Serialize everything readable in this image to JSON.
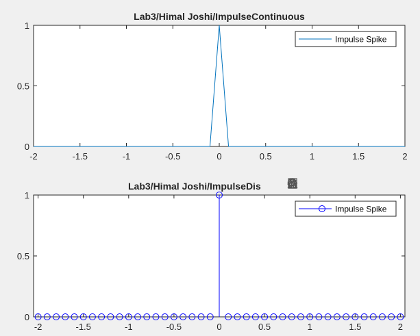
{
  "chart_data": [
    {
      "type": "line",
      "title": "Lab3/Himal Joshi/ImpulseContinuous",
      "xlim": [
        -2,
        2
      ],
      "ylim": [
        0,
        1
      ],
      "xticks": [
        "-2",
        "-1.5",
        "-1",
        "-0.5",
        "0",
        "0.5",
        "1",
        "1.5",
        "2"
      ],
      "yticks": [
        "0",
        "0.5",
        "1"
      ],
      "legend": "top-right",
      "grid": false,
      "series": [
        {
          "name": "Impulse Spike",
          "color": "#0072bd",
          "x": [
            -2,
            -0.1,
            0,
            0.1,
            2
          ],
          "y": [
            0,
            0,
            1,
            0,
            0
          ]
        }
      ]
    },
    {
      "type": "stem",
      "title": "Lab3/Himal Joshi/ImpulseDis",
      "xlim": [
        -2.05,
        2.05
      ],
      "ylim": [
        0,
        1
      ],
      "xticks": [
        "-2",
        "-1.5",
        "-1",
        "-0.5",
        "0",
        "0.5",
        "1",
        "1.5",
        "2"
      ],
      "yticks": [
        "0",
        "0.5",
        "1"
      ],
      "legend": "top-right",
      "grid": false,
      "series": [
        {
          "name": "Impulse Spike",
          "color": "#0000ff",
          "x": [
            -2,
            -1.9,
            -1.8,
            -1.7,
            -1.6,
            -1.5,
            -1.4,
            -1.3,
            -1.2,
            -1.1,
            -1,
            -0.9,
            -0.8,
            -0.7,
            -0.6,
            -0.5,
            -0.4,
            -0.3,
            -0.2,
            -0.1,
            0,
            0.1,
            0.2,
            0.3,
            0.4,
            0.5,
            0.6,
            0.7,
            0.8,
            0.9,
            1,
            1.1,
            1.2,
            1.3,
            1.4,
            1.5,
            1.6,
            1.7,
            1.8,
            1.9,
            2
          ],
          "y": [
            0,
            0,
            0,
            0,
            0,
            0,
            0,
            0,
            0,
            0,
            0,
            0,
            0,
            0,
            0,
            0,
            0,
            0,
            0,
            0,
            1,
            0,
            0,
            0,
            0,
            0,
            0,
            0,
            0,
            0,
            0,
            0,
            0,
            0,
            0,
            0,
            0,
            0,
            0,
            0,
            0
          ]
        }
      ]
    }
  ],
  "toolbar": {
    "icons": [
      "brush-icon",
      "data-tips-icon",
      "legend-icon",
      "pan-icon",
      "zoom-in-icon",
      "zoom-out-icon",
      "home-icon"
    ]
  }
}
